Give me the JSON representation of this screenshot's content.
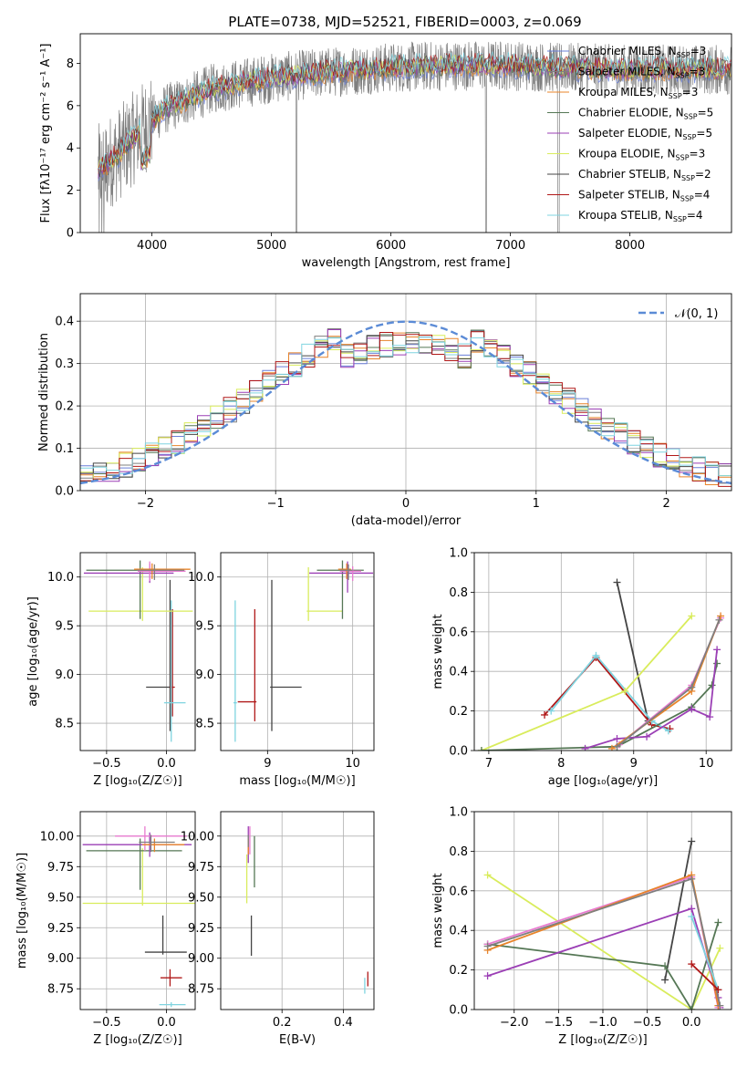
{
  "title": "PLATE=0738, MJD=52521, FIBERID=0003, z=0.069",
  "colors": {
    "Chabrier MILES": "#6a7fd8",
    "Salpeter MILES": "#7f7f7f",
    "Kroupa MILES": "#e8842a",
    "Chabrier ELODIE": "#557755",
    "Salpeter ELODIE": "#9b3fb5",
    "Kroupa ELODIE": "#d9ec5c",
    "Chabrier STELIB": "#444444",
    "Salpeter STELIB": "#b01818",
    "Kroupa STELIB": "#7fd4e0",
    "pink": "#e87bd0",
    "normal": "#5b8bd6"
  },
  "chart_data": [
    {
      "id": "spectrum",
      "type": "line",
      "title": "PLATE=0738, MJD=52521, FIBERID=0003, z=0.069",
      "xlabel": "wavelength [Angstrom, rest frame]",
      "ylabel": "Flux [fλ10⁻¹⁷ erg cm⁻² s⁻¹ A⁻¹]",
      "xlim": [
        3400,
        8850
      ],
      "ylim": [
        0,
        9.4
      ],
      "xticks": [
        4000,
        5000,
        6000,
        7000,
        8000
      ],
      "yticks": [
        0,
        2,
        4,
        6,
        8
      ],
      "legend_position": "top-right",
      "continuum": {
        "x": [
          3550,
          3700,
          3900,
          4100,
          4500,
          5000,
          5500,
          6000,
          6500,
          7000,
          7400,
          8000,
          8800
        ],
        "y": [
          2.9,
          3.6,
          4.8,
          5.8,
          6.8,
          7.3,
          7.6,
          7.8,
          7.9,
          7.9,
          7.8,
          7.7,
          7.7
        ]
      },
      "series": [
        {
          "name": "Chabrier MILES, N_SSP=3",
          "label": "Chabrier MILES, N",
          "sub": "SSP",
          "n": "=3",
          "color_key": "Chabrier MILES"
        },
        {
          "name": "Salpeter MILES, N_SSP=3",
          "label": "Salpeter MILES, N",
          "sub": "SSP",
          "n": "=3",
          "color_key": "Salpeter MILES"
        },
        {
          "name": "Kroupa MILES, N_SSP=3",
          "label": "Kroupa MILES, N",
          "sub": "SSP",
          "n": "=3",
          "color_key": "Kroupa MILES"
        },
        {
          "name": "Chabrier ELODIE, N_SSP=5",
          "label": "Chabrier ELODIE, N",
          "sub": "SSP",
          "n": "=5",
          "color_key": "Chabrier ELODIE"
        },
        {
          "name": "Salpeter ELODIE, N_SSP=5",
          "label": "Salpeter ELODIE, N",
          "sub": "SSP",
          "n": "=5",
          "color_key": "Salpeter ELODIE"
        },
        {
          "name": "Kroupa ELODIE, N_SSP=3",
          "label": "Kroupa ELODIE, N",
          "sub": "SSP",
          "n": "=3",
          "color_key": "Kroupa ELODIE"
        },
        {
          "name": "Chabrier STELIB, N_SSP=2",
          "label": "Chabrier STELIB, N",
          "sub": "SSP",
          "n": "=2",
          "color_key": "Chabrier STELIB"
        },
        {
          "name": "Salpeter STELIB, N_SSP=4",
          "label": "Salpeter STELIB, N",
          "sub": "SSP",
          "n": "=4",
          "color_key": "Salpeter STELIB"
        },
        {
          "name": "Kroupa STELIB, N_SSP=4",
          "label": "Kroupa STELIB, N",
          "sub": "SSP",
          "n": "=4",
          "color_key": "Kroupa STELIB"
        }
      ]
    },
    {
      "id": "residuals",
      "type": "line",
      "xlabel": "(data-model)/error",
      "ylabel": "Normed distribution",
      "xlim": [
        -2.5,
        2.5
      ],
      "ylim": [
        0,
        0.465
      ],
      "xticks": [
        -2,
        -1,
        0,
        1,
        2
      ],
      "yticks": [
        0.0,
        0.1,
        0.2,
        0.3,
        0.4
      ],
      "grid": true,
      "legend_position": "top-right",
      "normal_label": "𝒩(0, 1)",
      "bin_width": 0.1,
      "bins_x0": -2.5
    },
    {
      "id": "age_vs_Z",
      "type": "scatter",
      "xlabel": "Z [log₁₀(Z/Z☉)]",
      "ylabel": "age  [log₁₀(age/yr)]",
      "xlim": [
        -0.72,
        0.24
      ],
      "ylim": [
        8.22,
        10.25
      ],
      "xticks": [
        -0.5,
        0.0
      ],
      "yticks": [
        8.5,
        9.0,
        9.5,
        10.0
      ],
      "grid": true,
      "points": [
        {
          "c": "Chabrier STELIB",
          "x": 0.03,
          "y": 8.87,
          "xe": [
            0.2,
            0.02
          ],
          "ye": [
            0.45,
            1.1
          ]
        },
        {
          "c": "Salpeter STELIB",
          "x": 0.05,
          "y": 8.87,
          "xe": [
            0.02,
            0.02
          ],
          "ye": [
            0.3,
            0.8
          ]
        },
        {
          "c": "Kroupa STELIB",
          "x": 0.04,
          "y": 8.71,
          "xe": [
            0.06,
            0.12
          ],
          "ye": [
            0.4,
            1.05
          ]
        },
        {
          "c": "Kroupa ELODIE",
          "x": -0.2,
          "y": 9.65,
          "xe": [
            0.45,
            0.42
          ],
          "ye": [
            0.1,
            0.45
          ]
        },
        {
          "c": "Chabrier ELODIE",
          "x": -0.22,
          "y": 10.07,
          "xe": [
            0.45,
            0.35
          ],
          "ye": [
            0.5,
            0.1
          ]
        },
        {
          "c": "Salpeter ELODIE",
          "x": -0.14,
          "y": 10.04,
          "xe": [
            0.55,
            0.2
          ],
          "ye": [
            0.1,
            0.1
          ]
        },
        {
          "c": "pink",
          "x": -0.14,
          "y": 10.06,
          "xe": [
            0.1,
            0.3
          ],
          "ye": [
            0.1,
            0.1
          ]
        },
        {
          "c": "Kroupa MILES",
          "x": -0.12,
          "y": 10.08,
          "xe": [
            0.15,
            0.32
          ],
          "ye": [
            0.1,
            0.06
          ]
        },
        {
          "c": "Salpeter MILES",
          "x": -0.1,
          "y": 10.07,
          "xe": [
            0.15,
            0.25
          ],
          "ye": [
            0.1,
            0.06
          ]
        }
      ]
    },
    {
      "id": "age_vs_mass",
      "type": "scatter",
      "xlabel": "mass [log₁₀(M/M☉)]",
      "ylabel": "",
      "xlim": [
        8.45,
        10.25
      ],
      "ylim": [
        8.22,
        10.25
      ],
      "xticks": [
        9,
        10
      ],
      "yticks": [
        8.5,
        9.0,
        9.5,
        10.0
      ],
      "grid": true,
      "points": [
        {
          "c": "Chabrier STELIB",
          "x": 9.05,
          "y": 8.87,
          "xe": [
            0.02,
            0.35
          ],
          "ye": [
            0.45,
            1.1
          ]
        },
        {
          "c": "Salpeter STELIB",
          "x": 8.85,
          "y": 8.72,
          "xe": [
            0.2,
            0.02
          ],
          "ye": [
            0.2,
            0.95
          ]
        },
        {
          "c": "Kroupa STELIB",
          "x": 8.62,
          "y": 8.71,
          "xe": [
            0.02,
            0.02
          ],
          "ye": [
            0.4,
            1.05
          ]
        },
        {
          "c": "Kroupa ELODIE",
          "x": 9.48,
          "y": 9.65,
          "xe": [
            0.02,
            0.4
          ],
          "ye": [
            0.1,
            0.45
          ]
        },
        {
          "c": "Chabrier ELODIE",
          "x": 9.88,
          "y": 10.07,
          "xe": [
            0.3,
            0.25
          ],
          "ye": [
            0.5,
            0.1
          ]
        },
        {
          "c": "Salpeter ELODIE",
          "x": 9.94,
          "y": 10.04,
          "xe": [
            0.45,
            0.3
          ],
          "ye": [
            0.2,
            0.12
          ]
        },
        {
          "c": "pink",
          "x": 10.0,
          "y": 10.06,
          "xe": [
            0.15,
            0.1
          ],
          "ye": [
            0.1,
            0.05
          ]
        },
        {
          "c": "Kroupa MILES",
          "x": 9.93,
          "y": 10.08,
          "xe": [
            0.1,
            0.05
          ],
          "ye": [
            0.1,
            0.06
          ]
        },
        {
          "c": "Salpeter MILES",
          "x": 9.95,
          "y": 10.07,
          "xe": [
            0.1,
            0.05
          ],
          "ye": [
            0.1,
            0.06
          ]
        }
      ]
    },
    {
      "id": "weight_vs_age",
      "type": "line",
      "xlabel": "age  [log₁₀(age/yr)]",
      "ylabel": "mass weight",
      "xlim": [
        6.8,
        10.35
      ],
      "ylim": [
        0,
        1.0
      ],
      "xticks": [
        7,
        8,
        9,
        10
      ],
      "yticks": [
        0.0,
        0.2,
        0.4,
        0.6,
        0.8,
        1.0
      ],
      "grid": true,
      "series": [
        {
          "c": "Chabrier STELIB",
          "x": [
            8.77,
            9.2
          ],
          "y": [
            0.85,
            0.15
          ]
        },
        {
          "c": "Salpeter STELIB",
          "x": [
            7.77,
            8.48,
            9.25,
            9.5
          ],
          "y": [
            0.18,
            0.47,
            0.13,
            0.11
          ]
        },
        {
          "c": "Kroupa STELIB",
          "x": [
            7.86,
            8.48,
            9.25,
            9.48
          ],
          "y": [
            0.2,
            0.48,
            0.15,
            0.1
          ]
        },
        {
          "c": "Kroupa ELODIE",
          "x": [
            6.9,
            8.88,
            9.8
          ],
          "y": [
            0.0,
            0.3,
            0.68
          ]
        },
        {
          "c": "Chabrier ELODIE",
          "x": [
            6.9,
            8.77,
            9.8,
            10.08,
            10.15
          ],
          "y": [
            0.0,
            0.02,
            0.22,
            0.33,
            0.44
          ]
        },
        {
          "c": "Salpeter ELODIE",
          "x": [
            8.33,
            8.77,
            9.18,
            9.8,
            10.05,
            10.15
          ],
          "y": [
            0.01,
            0.06,
            0.07,
            0.21,
            0.17,
            0.51
          ]
        },
        {
          "c": "pink",
          "x": [
            8.8,
            9.8,
            10.2
          ],
          "y": [
            0.03,
            0.33,
            0.67
          ]
        },
        {
          "c": "Kroupa MILES",
          "x": [
            8.7,
            9.8,
            10.2
          ],
          "y": [
            0.01,
            0.3,
            0.68
          ]
        },
        {
          "c": "Salpeter MILES",
          "x": [
            8.77,
            9.8,
            10.18
          ],
          "y": [
            0.02,
            0.32,
            0.66
          ]
        }
      ]
    },
    {
      "id": "mass_vs_Z",
      "type": "scatter",
      "xlabel": "Z [log₁₀(Z/Z☉)]",
      "ylabel": "mass [log₁₀(M/M☉)]",
      "xlim": [
        -0.72,
        0.24
      ],
      "ylim": [
        8.58,
        10.2
      ],
      "xticks": [
        -0.5,
        0.0
      ],
      "yticks": [
        8.75,
        9.0,
        9.25,
        9.5,
        9.75,
        10.0
      ],
      "grid": true,
      "points": [
        {
          "c": "Chabrier STELIB",
          "x": -0.03,
          "y": 9.05,
          "xe": [
            0.15,
            0.2
          ],
          "ye": [
            0.02,
            0.3
          ]
        },
        {
          "c": "Salpeter STELIB",
          "x": 0.03,
          "y": 8.84,
          "xe": [
            0.08,
            0.1
          ],
          "ye": [
            0.07,
            0.07
          ]
        },
        {
          "c": "Kroupa STELIB",
          "x": 0.04,
          "y": 8.62,
          "xe": [
            0.1,
            0.12
          ],
          "ye": [
            0.02,
            0.02
          ]
        },
        {
          "c": "Kroupa ELODIE",
          "x": -0.2,
          "y": 9.45,
          "xe": [
            0.5,
            0.45
          ],
          "ye": [
            0.02,
            0.45
          ]
        },
        {
          "c": "Chabrier ELODIE",
          "x": -0.22,
          "y": 9.88,
          "xe": [
            0.45,
            0.35
          ],
          "ye": [
            0.32,
            0.1
          ]
        },
        {
          "c": "Salpeter ELODIE",
          "x": -0.14,
          "y": 9.93,
          "xe": [
            0.56,
            0.35
          ],
          "ye": [
            0.1,
            0.1
          ]
        },
        {
          "c": "pink",
          "x": -0.18,
          "y": 10.0,
          "xe": [
            0.25,
            0.35
          ],
          "ye": [
            0.12,
            0.08
          ]
        },
        {
          "c": "Kroupa MILES",
          "x": -0.1,
          "y": 9.93,
          "xe": [
            0.1,
            0.25
          ],
          "ye": [
            0.06,
            0.05
          ]
        },
        {
          "c": "Salpeter MILES",
          "x": -0.13,
          "y": 9.95,
          "xe": [
            0.1,
            0.2
          ],
          "ye": [
            0.08,
            0.06
          ]
        }
      ]
    },
    {
      "id": "mass_vs_ebv",
      "type": "scatter",
      "xlabel": "E(B-V)",
      "ylabel": "",
      "xlim": [
        0.0,
        0.5
      ],
      "ylim": [
        8.58,
        10.2
      ],
      "xticks": [
        0.2,
        0.4
      ],
      "yticks": [
        8.75,
        9.0,
        9.25,
        9.5,
        9.75,
        10.0
      ],
      "grid": true,
      "points": [
        {
          "c": "Chabrier STELIB",
          "x": 0.1,
          "y": 9.05,
          "xe": [
            0,
            0
          ],
          "ye": [
            0.03,
            0.3
          ]
        },
        {
          "c": "Salpeter STELIB",
          "x": 0.48,
          "y": 8.82,
          "xe": [
            0,
            0
          ],
          "ye": [
            0.05,
            0.07
          ]
        },
        {
          "c": "Kroupa STELIB",
          "x": 0.47,
          "y": 8.74,
          "xe": [
            0,
            0
          ],
          "ye": [
            0.03,
            0.1
          ]
        },
        {
          "c": "Kroupa ELODIE",
          "x": 0.085,
          "y": 9.6,
          "xe": [
            0,
            0
          ],
          "ye": [
            0.15,
            0.25
          ]
        },
        {
          "c": "Chabrier ELODIE",
          "x": 0.11,
          "y": 9.88,
          "xe": [
            0,
            0
          ],
          "ye": [
            0.3,
            0.12
          ]
        },
        {
          "c": "Salpeter ELODIE",
          "x": 0.09,
          "y": 9.93,
          "xe": [
            0,
            0
          ],
          "ye": [
            0.15,
            0.15
          ]
        },
        {
          "c": "pink",
          "x": 0.095,
          "y": 10.0,
          "xe": [
            0,
            0
          ],
          "ye": [
            0.15,
            0.08
          ]
        },
        {
          "c": "Kroupa MILES",
          "x": 0.09,
          "y": 9.93,
          "xe": [
            0,
            0
          ],
          "ye": [
            0.08,
            0.05
          ]
        },
        {
          "c": "Salpeter MILES",
          "x": 0.09,
          "y": 9.96,
          "xe": [
            0,
            0
          ],
          "ye": [
            0.05,
            0.05
          ]
        }
      ]
    },
    {
      "id": "weight_vs_Z",
      "type": "line",
      "xlabel": "Z [log₁₀(Z/Z☉)]",
      "ylabel": "mass weight",
      "xlim": [
        -2.45,
        0.45
      ],
      "ylim": [
        0,
        1.0
      ],
      "xticks": [
        -2.0,
        -1.5,
        -1.0,
        -0.5,
        0.0
      ],
      "yticks": [
        0.0,
        0.2,
        0.4,
        0.6,
        0.8,
        1.0
      ],
      "grid": true,
      "series": [
        {
          "c": "Chabrier STELIB",
          "x": [
            -0.3,
            0.0
          ],
          "y": [
            0.15,
            0.85
          ]
        },
        {
          "c": "Kroupa ELODIE",
          "x": [
            -2.3,
            0.0,
            0.32
          ],
          "y": [
            0.68,
            0.0,
            0.31
          ]
        },
        {
          "c": "Chabrier ELODIE",
          "x": [
            -2.3,
            -0.3,
            0.0,
            0.3
          ],
          "y": [
            0.33,
            0.22,
            0.0,
            0.44
          ]
        },
        {
          "c": "Salpeter ELODIE",
          "x": [
            -2.3,
            0.0,
            0.3,
            0.32
          ],
          "y": [
            0.17,
            0.51,
            0.06,
            0.01
          ]
        },
        {
          "c": "pink",
          "x": [
            -2.3,
            0.0,
            0.3
          ],
          "y": [
            0.33,
            0.67,
            0.01
          ]
        },
        {
          "c": "Kroupa MILES",
          "x": [
            -2.3,
            0.0,
            0.3
          ],
          "y": [
            0.3,
            0.68,
            0.02
          ]
        },
        {
          "c": "Salpeter MILES",
          "x": [
            -2.3,
            0.0,
            0.32
          ],
          "y": [
            0.32,
            0.66,
            0.02
          ]
        },
        {
          "c": "Kroupa STELIB",
          "x": [
            0.0,
            0.3
          ],
          "y": [
            0.47,
            0.1
          ]
        },
        {
          "c": "Salpeter STELIB",
          "x": [
            0.0,
            0.3
          ],
          "y": [
            0.23,
            0.1
          ]
        }
      ]
    }
  ]
}
